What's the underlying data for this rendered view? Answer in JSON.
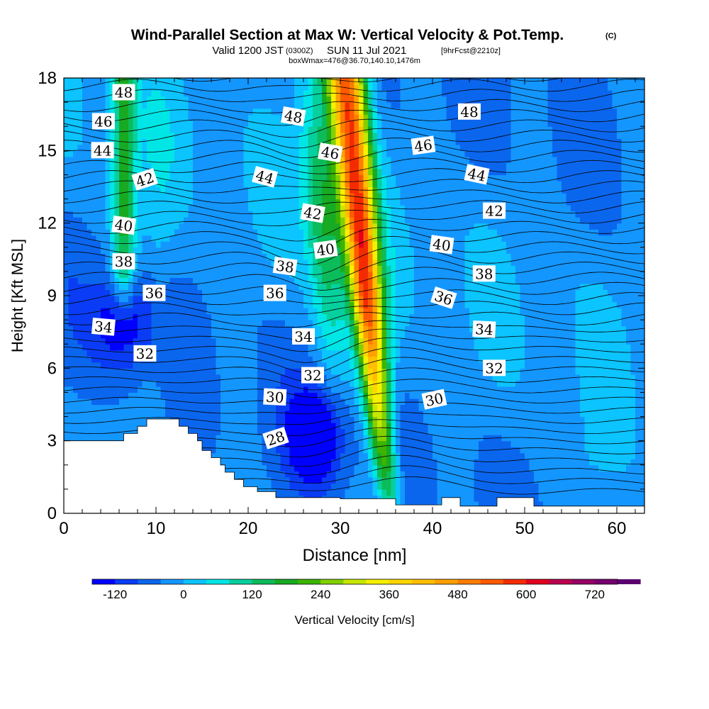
{
  "header": {
    "title": "Wind-Parallel Section at Max W: Vertical Velocity & Pot.Temp.",
    "copyright": "(C)",
    "valid_prefix": "Valid 1200 JST",
    "valid_utc": "(0300Z)",
    "valid_date": "SUN 11 Jul 2021",
    "forecast_info": "[9hrFcst@2210z]",
    "box_info": "boxWmax=476@36.70,140.10,1476m"
  },
  "chart_data": {
    "type": "heatmap",
    "xlabel": "Distance [nm]",
    "ylabel": "Height [Kft MSL]",
    "xlim": [
      0,
      63
    ],
    "ylim": [
      0,
      18
    ],
    "x_ticks": [
      0,
      10,
      20,
      30,
      40,
      50,
      60
    ],
    "y_ticks": [
      0,
      3,
      6,
      9,
      12,
      15,
      18
    ],
    "colorbar": {
      "label": "Vertical Velocity [cm/s]",
      "min": -160,
      "max": 760,
      "step": 40,
      "tick_labels": [
        "-120",
        "0",
        "120",
        "240",
        "360",
        "480",
        "600",
        "720"
      ],
      "tick_values": [
        -120,
        0,
        120,
        240,
        360,
        480,
        600,
        720
      ],
      "colors": [
        "#0000ff",
        "#0a3cf5",
        "#0b66ee",
        "#1496ff",
        "#0cc4ff",
        "#00e6e6",
        "#06d09e",
        "#0cbc5a",
        "#18aa22",
        "#3cb400",
        "#82d000",
        "#c6e800",
        "#f7f000",
        "#ffd700",
        "#ffbf00",
        "#ffa000",
        "#ff7e00",
        "#ff5a00",
        "#f52b00",
        "#e2001e",
        "#bc004e",
        "#960066",
        "#75006e",
        "#5a006e"
      ]
    },
    "pot_temp_contour_labels": [
      {
        "text": "48",
        "x": 6.5,
        "y": 17.4,
        "angle": 0
      },
      {
        "text": "46",
        "x": 4.3,
        "y": 16.2,
        "angle": 0
      },
      {
        "text": "44",
        "x": 4.2,
        "y": 15.0,
        "angle": 0
      },
      {
        "text": "42",
        "x": 8.8,
        "y": 13.8,
        "angle": -18
      },
      {
        "text": "40",
        "x": 6.5,
        "y": 11.9,
        "angle": 8
      },
      {
        "text": "38",
        "x": 6.5,
        "y": 10.4,
        "angle": 0
      },
      {
        "text": "36",
        "x": 9.8,
        "y": 9.1,
        "angle": 0
      },
      {
        "text": "34",
        "x": 4.3,
        "y": 7.7,
        "angle": 5
      },
      {
        "text": "32",
        "x": 8.8,
        "y": 6.6,
        "angle": 0
      },
      {
        "text": "48",
        "x": 24.9,
        "y": 16.4,
        "angle": 10
      },
      {
        "text": "46",
        "x": 28.9,
        "y": 14.9,
        "angle": 10
      },
      {
        "text": "44",
        "x": 21.8,
        "y": 13.9,
        "angle": 15
      },
      {
        "text": "42",
        "x": 27.0,
        "y": 12.4,
        "angle": 10
      },
      {
        "text": "40",
        "x": 28.4,
        "y": 10.9,
        "angle": -8
      },
      {
        "text": "38",
        "x": 24.0,
        "y": 10.2,
        "angle": 8
      },
      {
        "text": "36",
        "x": 22.9,
        "y": 9.1,
        "angle": 0
      },
      {
        "text": "34",
        "x": 26.0,
        "y": 7.3,
        "angle": 0
      },
      {
        "text": "32",
        "x": 27.0,
        "y": 5.7,
        "angle": 0
      },
      {
        "text": "30",
        "x": 22.9,
        "y": 4.8,
        "angle": 3
      },
      {
        "text": "28",
        "x": 23.0,
        "y": 3.1,
        "angle": -18
      },
      {
        "text": "48",
        "x": 44.0,
        "y": 16.6,
        "angle": 0
      },
      {
        "text": "46",
        "x": 39.0,
        "y": 15.2,
        "angle": -8
      },
      {
        "text": "44",
        "x": 44.8,
        "y": 14.0,
        "angle": 12
      },
      {
        "text": "42",
        "x": 46.7,
        "y": 12.5,
        "angle": 0
      },
      {
        "text": "40",
        "x": 41.0,
        "y": 11.1,
        "angle": 8
      },
      {
        "text": "38",
        "x": 45.6,
        "y": 9.9,
        "angle": 0
      },
      {
        "text": "36",
        "x": 41.2,
        "y": 8.9,
        "angle": 18
      },
      {
        "text": "34",
        "x": 45.6,
        "y": 7.6,
        "angle": 3
      },
      {
        "text": "32",
        "x": 46.7,
        "y": 6.0,
        "angle": 0
      },
      {
        "text": "30",
        "x": 40.2,
        "y": 4.7,
        "angle": -12
      }
    ],
    "terrain_profile": [
      [
        0,
        0
      ],
      [
        0,
        3
      ],
      [
        6.5,
        3
      ],
      [
        6.5,
        3.3
      ],
      [
        8,
        3.3
      ],
      [
        8,
        3.6
      ],
      [
        9,
        3.6
      ],
      [
        9,
        3.9
      ],
      [
        12.5,
        3.9
      ],
      [
        12.5,
        3.6
      ],
      [
        13.5,
        3.6
      ],
      [
        13.5,
        3.3
      ],
      [
        14.5,
        3.3
      ],
      [
        14.5,
        3.0
      ],
      [
        15,
        3.0
      ],
      [
        15,
        2.6
      ],
      [
        16,
        2.6
      ],
      [
        16,
        2.3
      ],
      [
        17,
        2.3
      ],
      [
        17,
        2.0
      ],
      [
        17.5,
        2.0
      ],
      [
        17.5,
        1.7
      ],
      [
        18.5,
        1.7
      ],
      [
        18.5,
        1.4
      ],
      [
        19.5,
        1.4
      ],
      [
        19.5,
        1.1
      ],
      [
        21,
        1.1
      ],
      [
        21,
        0.9
      ],
      [
        23,
        0.9
      ],
      [
        23,
        0.65
      ],
      [
        30,
        0.65
      ],
      [
        30,
        0.6
      ],
      [
        36,
        0.6
      ],
      [
        36,
        0.35
      ],
      [
        41,
        0.35
      ],
      [
        41,
        0.65
      ],
      [
        43,
        0.65
      ],
      [
        43,
        0.3
      ],
      [
        47,
        0.3
      ],
      [
        47,
        0.65
      ],
      [
        51,
        0.65
      ],
      [
        51,
        0.3
      ],
      [
        63,
        0.3
      ],
      [
        63,
        0
      ]
    ],
    "updraft_core": {
      "base_x": 35.6,
      "top_x": 30.6,
      "peak_cm_s": 620
    },
    "secondary_updraft": {
      "x": 6.5,
      "y_from": 10.5,
      "y_to": 18,
      "peak_cm_s": 200
    },
    "downdraft_cores": [
      {
        "x": 27.5,
        "y": 3.2,
        "cm_s": -130
      },
      {
        "x": 6.6,
        "y": 8.0,
        "cm_s": -110
      }
    ]
  }
}
